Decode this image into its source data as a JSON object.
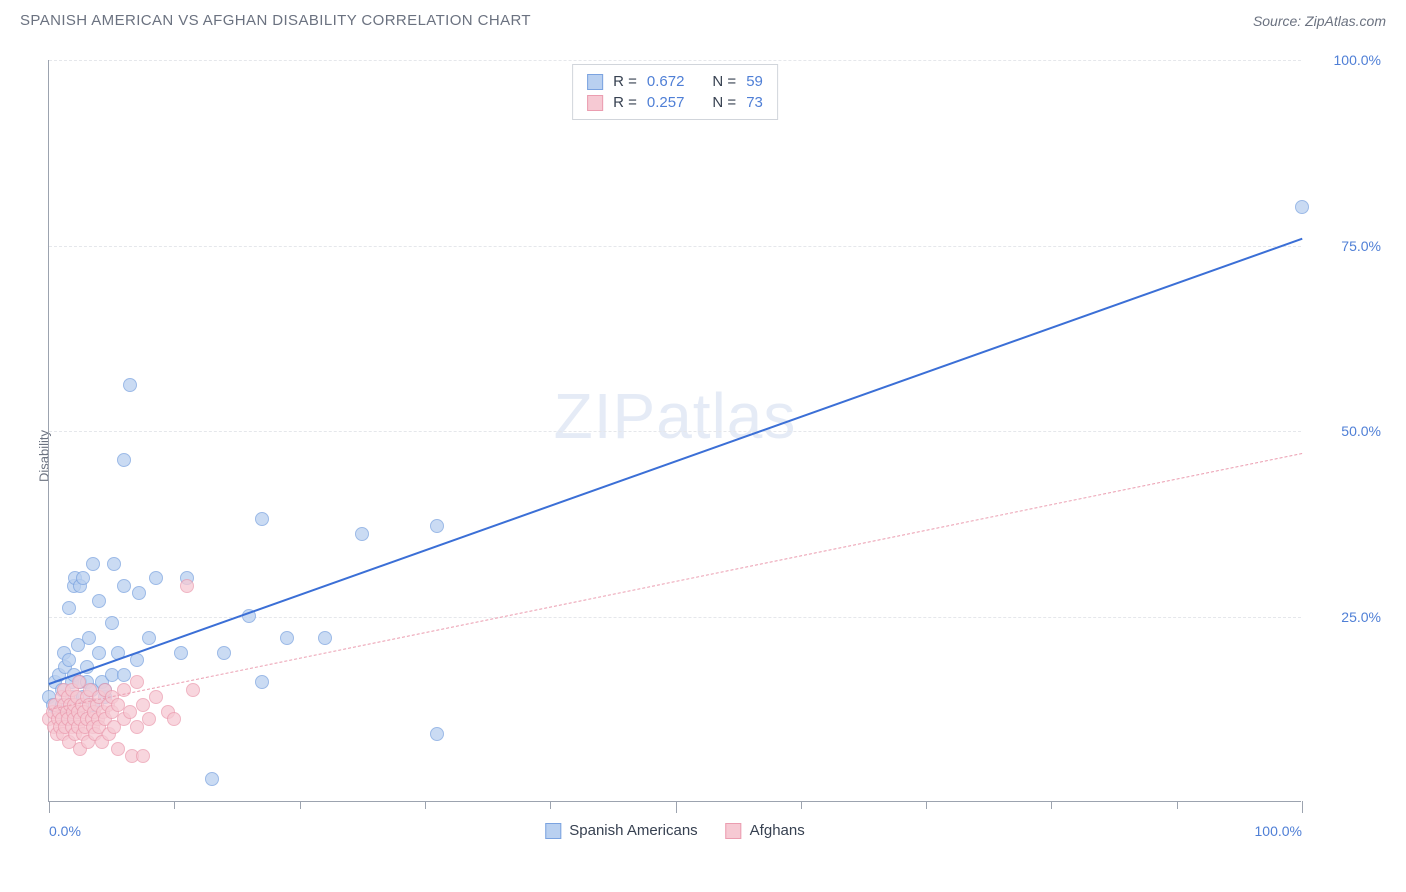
{
  "header": {
    "title": "SPANISH AMERICAN VS AFGHAN DISABILITY CORRELATION CHART",
    "source": "Source: ZipAtlas.com"
  },
  "watermark": {
    "bold": "ZIP",
    "light": "atlas"
  },
  "chart": {
    "type": "scatter",
    "ylabel": "Disability",
    "xlim": [
      0,
      100
    ],
    "ylim": [
      0,
      100
    ],
    "xticks_minor_step": 10,
    "xticks_major": [
      0,
      50,
      100
    ],
    "xtick_labels": {
      "0": "0.0%",
      "100": "100.0%"
    },
    "yticks": [
      25,
      50,
      75,
      100
    ],
    "ytick_labels": {
      "25": "25.0%",
      "50": "50.0%",
      "75": "75.0%",
      "100": "100.0%"
    },
    "grid_color": "#e5e7eb",
    "axis_color": "#9ca3af",
    "tick_label_color": "#4f7fd6",
    "background_color": "#ffffff",
    "series": [
      {
        "name": "Spanish Americans",
        "color_fill": "#b9d0f0",
        "color_stroke": "#7ba3e0",
        "legend_swatch_fill": "#b9d0f0",
        "legend_swatch_stroke": "#7ba3e0",
        "R": "0.672",
        "N": "59",
        "trend": {
          "x1": 0,
          "y1": 16,
          "x2": 100,
          "y2": 76,
          "stroke": "#3b6fd6",
          "width": 2.5,
          "dash": "none"
        },
        "points": [
          [
            0,
            14
          ],
          [
            0.3,
            13
          ],
          [
            0.5,
            16
          ],
          [
            0.7,
            12
          ],
          [
            0.8,
            17
          ],
          [
            1,
            13
          ],
          [
            1,
            15
          ],
          [
            1.2,
            20
          ],
          [
            1.3,
            18
          ],
          [
            1.4,
            11
          ],
          [
            1.6,
            19
          ],
          [
            1.6,
            26
          ],
          [
            1.8,
            14
          ],
          [
            1.8,
            16
          ],
          [
            2,
            17
          ],
          [
            2,
            29
          ],
          [
            2.1,
            30
          ],
          [
            2.3,
            12
          ],
          [
            2.3,
            21
          ],
          [
            2.5,
            16
          ],
          [
            2.5,
            29
          ],
          [
            2.7,
            30
          ],
          [
            2.7,
            14
          ],
          [
            3,
            18
          ],
          [
            3,
            16
          ],
          [
            3.2,
            22
          ],
          [
            3.4,
            15
          ],
          [
            3.5,
            13
          ],
          [
            3.5,
            32
          ],
          [
            4,
            20
          ],
          [
            4,
            27
          ],
          [
            4.2,
            16
          ],
          [
            4.5,
            14
          ],
          [
            4.5,
            15
          ],
          [
            5,
            24
          ],
          [
            5,
            17
          ],
          [
            5.2,
            32
          ],
          [
            5.5,
            20
          ],
          [
            6,
            29
          ],
          [
            6,
            17
          ],
          [
            6,
            46
          ],
          [
            6.5,
            56
          ],
          [
            7,
            19
          ],
          [
            7.2,
            28
          ],
          [
            8,
            22
          ],
          [
            8.5,
            30
          ],
          [
            10.5,
            20
          ],
          [
            11,
            30
          ],
          [
            13,
            3
          ],
          [
            14,
            20
          ],
          [
            16,
            25
          ],
          [
            17,
            16
          ],
          [
            17,
            38
          ],
          [
            19,
            22
          ],
          [
            22,
            22
          ],
          [
            25,
            36
          ],
          [
            31,
            9
          ],
          [
            31,
            37
          ],
          [
            100,
            80
          ]
        ]
      },
      {
        "name": "Afghans",
        "color_fill": "#f6c9d3",
        "color_stroke": "#eb9db0",
        "legend_swatch_fill": "#f6c9d3",
        "legend_swatch_stroke": "#eb9db0",
        "R": "0.257",
        "N": "73",
        "trend": {
          "x1": 0,
          "y1": 12.5,
          "x2": 100,
          "y2": 47,
          "stroke": "#eb9db0",
          "width": 1.2,
          "dash": "6,6"
        },
        "points": [
          [
            0,
            11
          ],
          [
            0.3,
            12
          ],
          [
            0.4,
            10
          ],
          [
            0.5,
            13
          ],
          [
            0.6,
            9
          ],
          [
            0.7,
            11
          ],
          [
            0.8,
            12
          ],
          [
            0.9,
            10
          ],
          [
            1,
            11
          ],
          [
            1,
            14
          ],
          [
            1.1,
            9
          ],
          [
            1.2,
            13
          ],
          [
            1.2,
            15
          ],
          [
            1.3,
            10
          ],
          [
            1.4,
            12
          ],
          [
            1.5,
            14
          ],
          [
            1.5,
            11
          ],
          [
            1.6,
            8
          ],
          [
            1.7,
            13
          ],
          [
            1.8,
            10
          ],
          [
            1.8,
            15
          ],
          [
            1.9,
            12
          ],
          [
            2,
            11
          ],
          [
            2,
            13
          ],
          [
            2.1,
            9
          ],
          [
            2.2,
            14
          ],
          [
            2.3,
            12
          ],
          [
            2.3,
            10
          ],
          [
            2.4,
            16
          ],
          [
            2.5,
            11
          ],
          [
            2.5,
            7
          ],
          [
            2.6,
            13
          ],
          [
            2.7,
            9
          ],
          [
            2.8,
            12
          ],
          [
            2.9,
            10
          ],
          [
            3,
            14
          ],
          [
            3,
            11
          ],
          [
            3.1,
            8
          ],
          [
            3.2,
            13
          ],
          [
            3.3,
            15
          ],
          [
            3.4,
            11
          ],
          [
            3.5,
            10
          ],
          [
            3.6,
            12
          ],
          [
            3.7,
            9
          ],
          [
            3.8,
            13
          ],
          [
            3.9,
            11
          ],
          [
            4,
            14
          ],
          [
            4,
            10
          ],
          [
            4.2,
            8
          ],
          [
            4.3,
            12
          ],
          [
            4.5,
            11
          ],
          [
            4.5,
            15
          ],
          [
            4.7,
            13
          ],
          [
            4.8,
            9
          ],
          [
            5,
            12
          ],
          [
            5,
            14
          ],
          [
            5.2,
            10
          ],
          [
            5.5,
            7
          ],
          [
            5.5,
            13
          ],
          [
            6,
            11
          ],
          [
            6,
            15
          ],
          [
            6.5,
            12
          ],
          [
            6.6,
            6
          ],
          [
            7,
            10
          ],
          [
            7,
            16
          ],
          [
            7.5,
            13
          ],
          [
            7.5,
            6
          ],
          [
            8,
            11
          ],
          [
            8.5,
            14
          ],
          [
            9.5,
            12
          ],
          [
            10,
            11
          ],
          [
            11,
            29
          ],
          [
            11.5,
            15
          ]
        ]
      }
    ],
    "legend_bottom": [
      {
        "label": "Spanish Americans",
        "fill": "#b9d0f0",
        "stroke": "#7ba3e0"
      },
      {
        "label": "Afghans",
        "fill": "#f6c9d3",
        "stroke": "#eb9db0"
      }
    ]
  }
}
